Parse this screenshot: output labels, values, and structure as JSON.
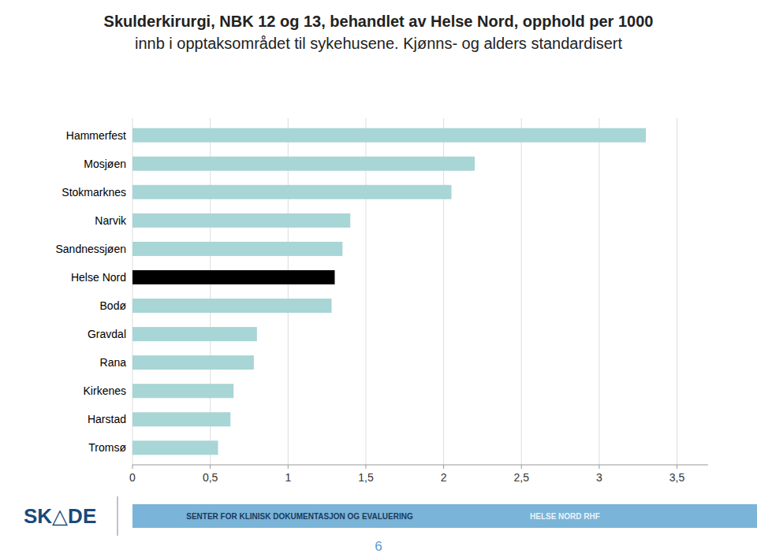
{
  "chart_data": {
    "type": "bar",
    "orientation": "horizontal",
    "title": "Skulderkirurgi, NBK 12 og 13, behandlet av Helse Nord, opphold per 1000",
    "subtitle": "innb i opptaksområdet til sykehusene. Kjønns- og alders standardisert",
    "categories": [
      "Hammerfest",
      "Mosjøen",
      "Stokmarknes",
      "Narvik",
      "Sandnessjøen",
      "Helse Nord",
      "Bodø",
      "Gravdal",
      "Rana",
      "Kirkenes",
      "Harstad",
      "Tromsø"
    ],
    "values": [
      3.3,
      2.2,
      2.05,
      1.4,
      1.35,
      1.3,
      1.28,
      0.8,
      0.78,
      0.65,
      0.63,
      0.55
    ],
    "colors": [
      "#a8d5d5",
      "#a8d5d5",
      "#a8d5d5",
      "#a8d5d5",
      "#a8d5d5",
      "#000000",
      "#a8d5d5",
      "#a8d5d5",
      "#a8d5d5",
      "#a8d5d5",
      "#a8d5d5",
      "#a8d5d5"
    ],
    "xlim": [
      0,
      3.7
    ],
    "xticks": [
      0,
      {
        "value": 0.5,
        "label": "0,5"
      },
      1,
      {
        "value": 1.5,
        "label": "1,5"
      },
      2,
      {
        "value": 2.5,
        "label": "2,5"
      },
      3,
      {
        "value": 3.5,
        "label": "3,5"
      }
    ],
    "grid": true,
    "annotations": [
      "SK△DE",
      "SENTER FOR KLINISK DOKUMENTASJON OG EVALUERING",
      "HELSE NORD RHF",
      "6"
    ]
  }
}
